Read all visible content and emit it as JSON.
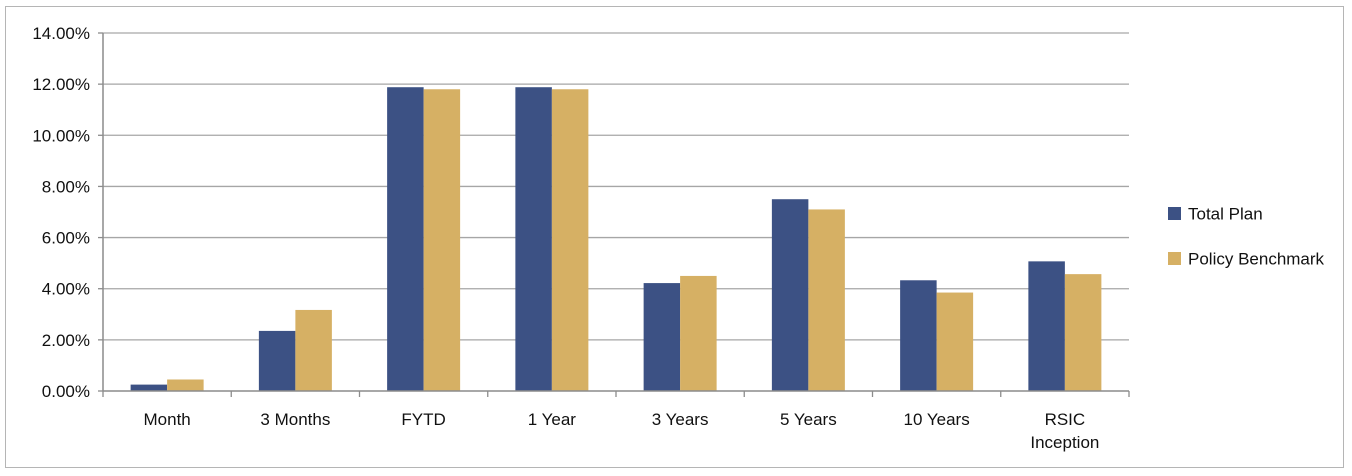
{
  "chart_data": {
    "type": "bar",
    "title": "",
    "xlabel": "",
    "ylabel": "",
    "categories": [
      [
        "Month"
      ],
      [
        "3 Months"
      ],
      [
        "FYTD"
      ],
      [
        "1 Year"
      ],
      [
        "3 Years"
      ],
      [
        "5 Years"
      ],
      [
        "10 Years"
      ],
      [
        "RSIC",
        "Inception"
      ]
    ],
    "series": [
      {
        "name": "Total Plan",
        "color": "#3c5184",
        "values": [
          0.25,
          2.35,
          11.88,
          11.88,
          4.22,
          7.5,
          4.33,
          5.07
        ]
      },
      {
        "name": "Policy Benchmark",
        "color": "#d6b064",
        "values": [
          0.45,
          3.17,
          11.8,
          11.8,
          4.5,
          7.1,
          3.85,
          4.57
        ]
      }
    ],
    "ylim": [
      0,
      14
    ],
    "yticks": [
      0,
      2,
      4,
      6,
      8,
      10,
      12,
      14
    ],
    "ytick_labels": [
      "0.00%",
      "2.00%",
      "4.00%",
      "6.00%",
      "8.00%",
      "10.00%",
      "12.00%",
      "14.00%"
    ],
    "grid": true,
    "legend_position": "right"
  }
}
